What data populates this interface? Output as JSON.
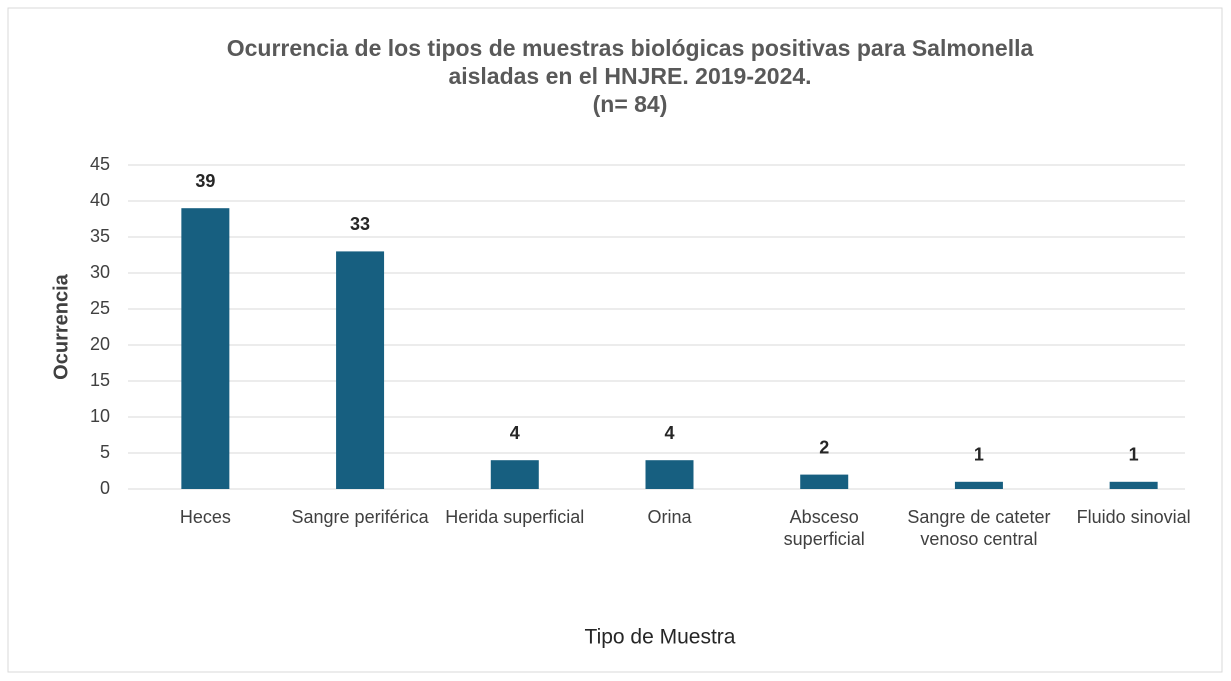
{
  "chart_data": {
    "type": "bar",
    "title": "Ocurrencia de los tipos de muestras biológicas positivas para Salmonella aisladas en el HNJRE. 2019-2024.",
    "subtitle": "(n= 84)",
    "x_label": "Tipo de Muestra",
    "y_label": "Ocurrencia",
    "categories": [
      "Heces",
      "Sangre periférica",
      "Herida superficial",
      "Orina",
      "Absceso superficial",
      "Sangre de cateter venoso central",
      "Fluido sinovial"
    ],
    "values": [
      39,
      33,
      4,
      4,
      2,
      1,
      1
    ],
    "color": "#175f80",
    "ylim": [
      0,
      45
    ],
    "yticks": [
      0,
      5,
      10,
      15,
      20,
      25,
      30,
      35,
      40,
      45
    ],
    "grid": true
  }
}
